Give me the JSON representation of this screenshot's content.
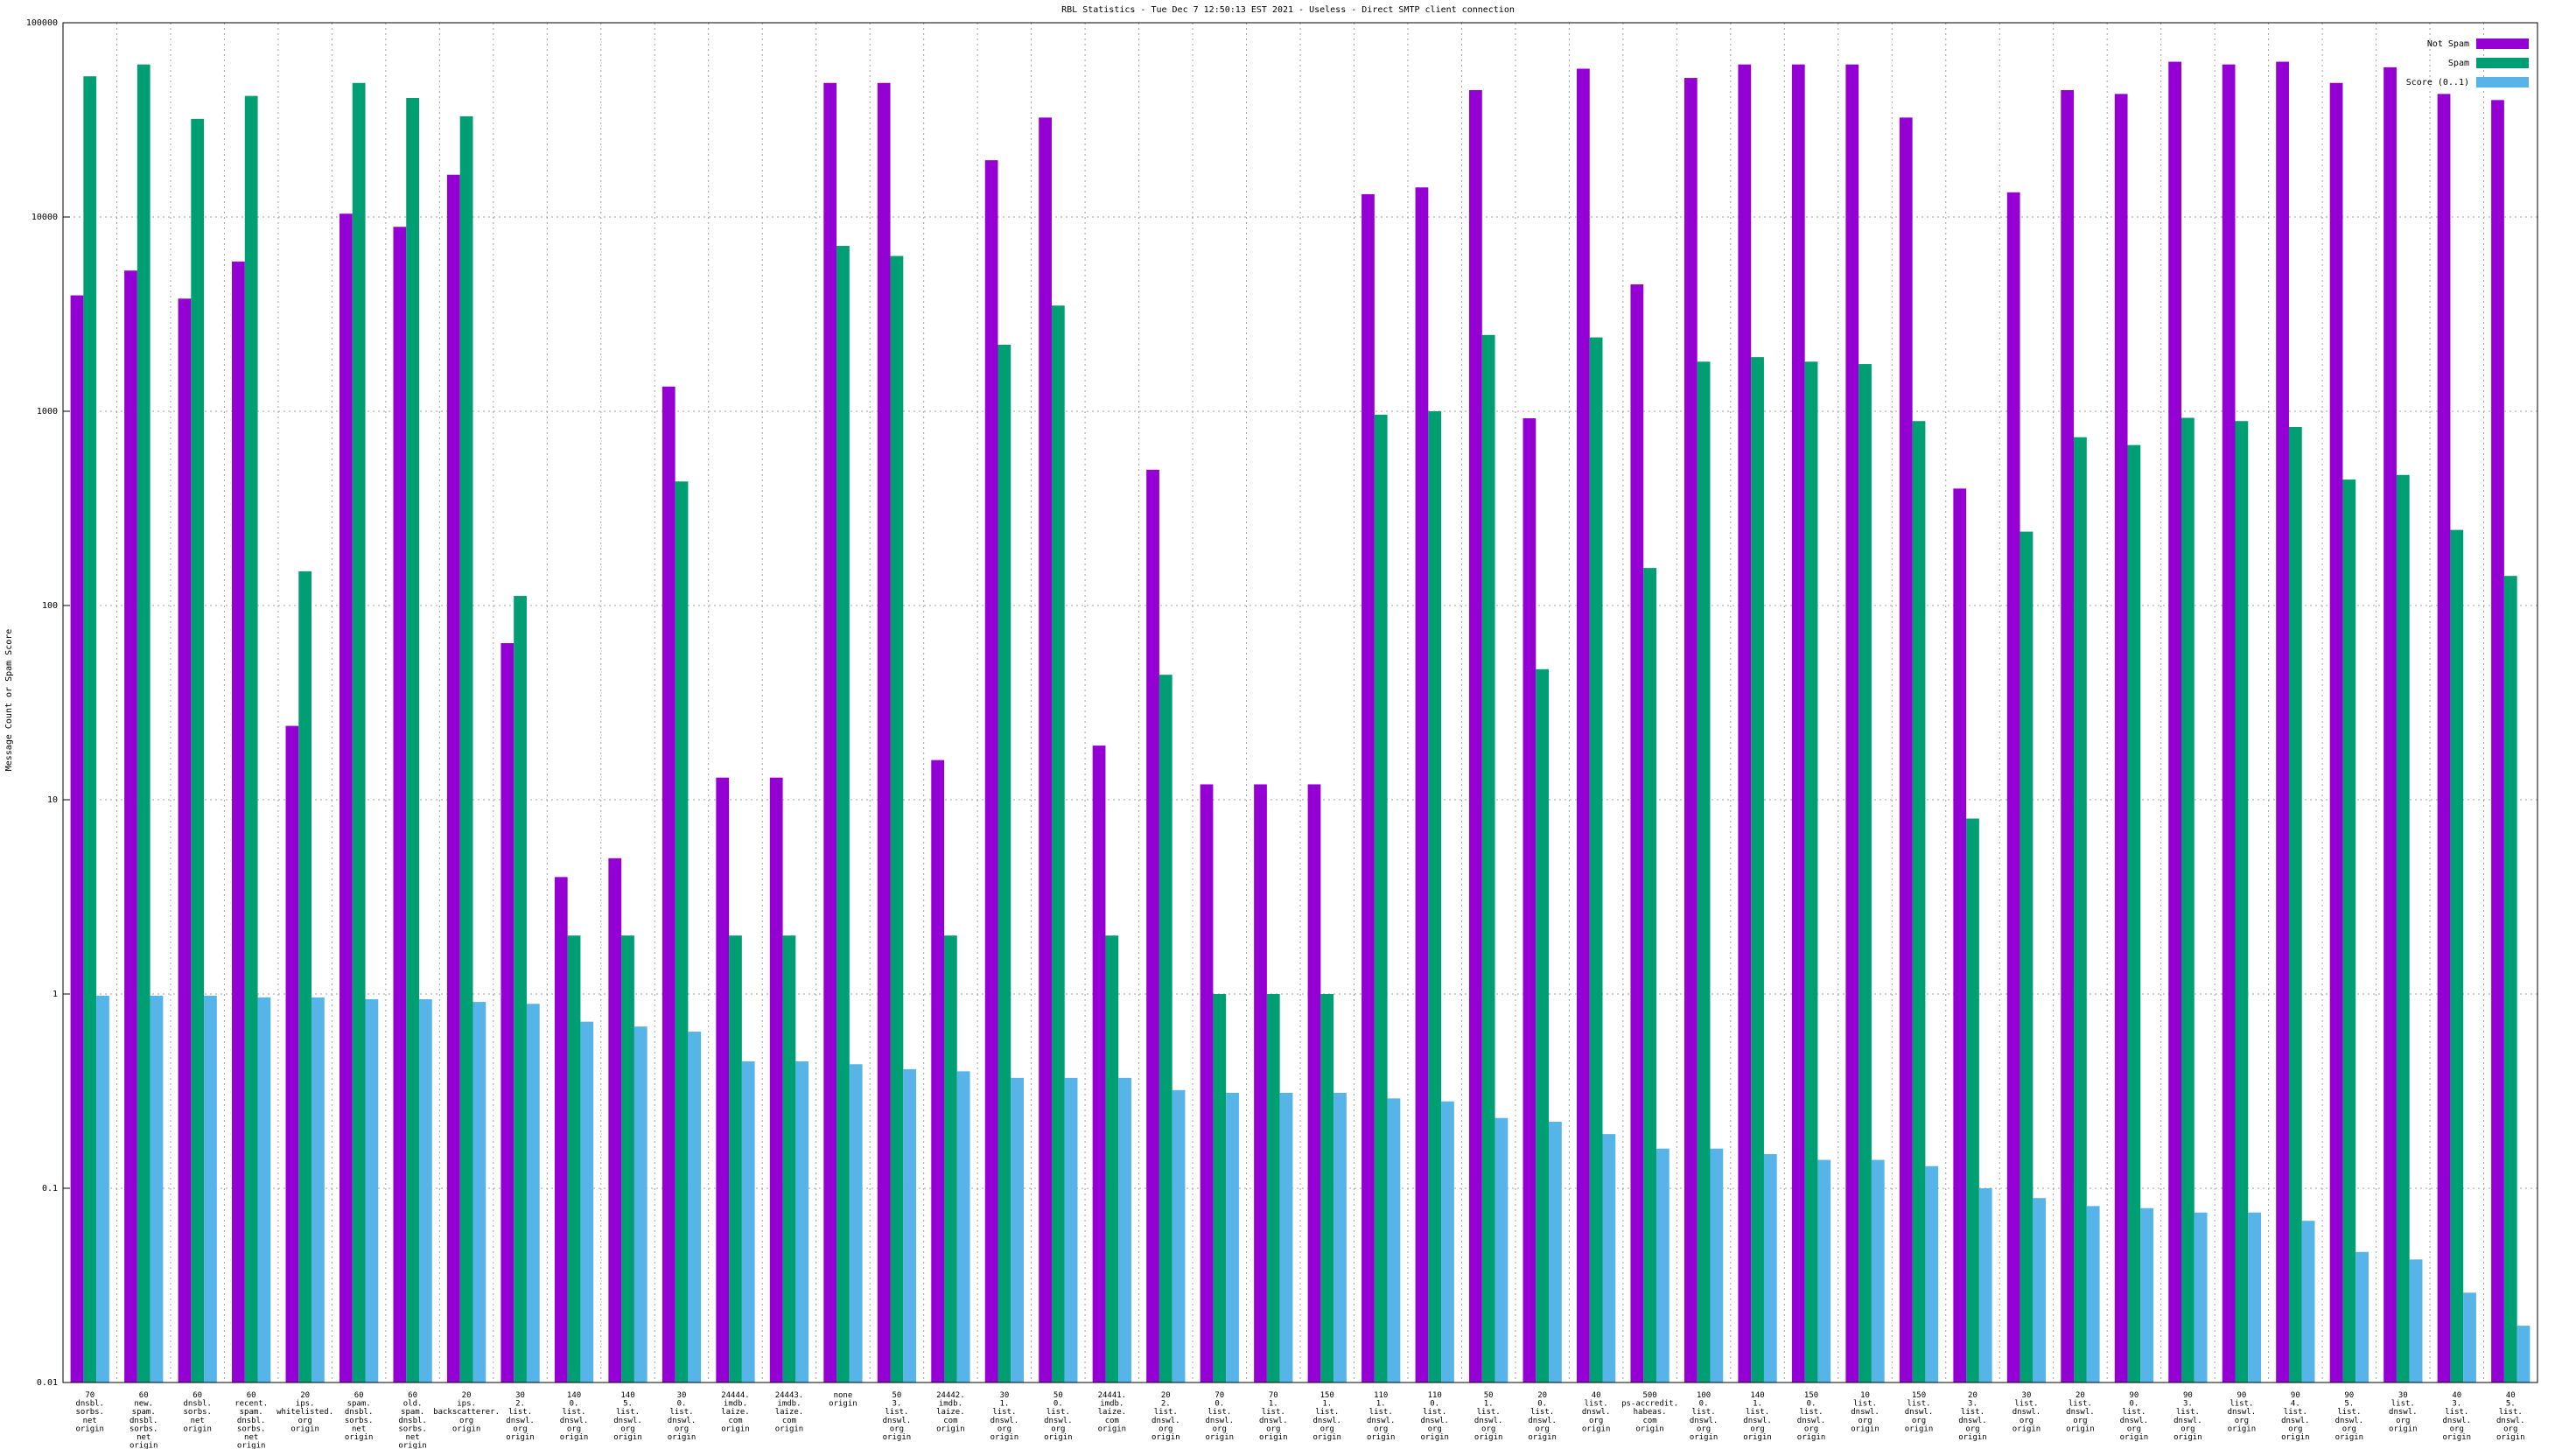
{
  "chart_data": {
    "type": "bar",
    "title": "RBL Statistics - Tue Dec  7 12:50:13 EST 2021 - Useless - Direct SMTP client connection",
    "y_label": "Message Count or Spam Score",
    "categories": [
      "70\ndnsbl.\nsorbs.\nnet\norigin",
      "60\nnew.\nspam.\ndnsbl.\nsorbs.\nnet\norigin",
      "60\ndnsbl.\nsorbs.\nnet\norigin",
      "60\nrecent.\nspam.\ndnsbl.\nsorbs.\nnet\norigin",
      "20\nips.\nwhitelisted.\norg\norigin",
      "60\nspam.\ndnsbl.\nsorbs.\nnet\norigin",
      "60\nold.\nspam.\ndnsbl.\nsorbs.\nnet\norigin",
      "20\nips.\nbackscatterer.\norg\norigin",
      "30\n2.\nlist.\ndnswl.\norg\norigin",
      "140\n0.\nlist.\ndnswl.\norg\norigin",
      "140\n5.\nlist.\ndnswl.\norg\norigin",
      "30\n0.\nlist.\ndnswl.\norg\norigin",
      "24444.\nimdb.\nlaize.\ncom\norigin",
      "24443.\nimdb.\nlaize.\ncom\norigin",
      "none\norigin",
      "50\n3.\nlist.\ndnswl.\norg\norigin",
      "24442.\nimdb.\nlaize.\ncom\norigin",
      "30\n1.\nlist.\ndnswl.\norg\norigin",
      "50\n0.\nlist.\ndnswl.\norg\norigin",
      "24441.\nimdb.\nlaize.\ncom\norigin",
      "20\n2.\nlist.\ndnswl.\norg\norigin",
      "70\n0.\nlist.\ndnswl.\norg\norigin",
      "70\n1.\nlist.\ndnswl.\norg\norigin",
      "150\n1.\nlist.\ndnswl.\norg\norigin",
      "110\n1.\nlist.\ndnswl.\norg\norigin",
      "110\n0.\nlist.\ndnswl.\norg\norigin",
      "50\n1.\nlist.\ndnswl.\norg\norigin",
      "20\n0.\nlist.\ndnswl.\norg\norigin",
      "40\nlist.\ndnswl.\norg\norigin",
      "500\nps-accredit.\nhabeas.\ncom\norigin",
      "100\n0.\nlist.\ndnswl.\norg\norigin",
      "140\n1.\nlist.\ndnswl.\norg\norigin",
      "150\n0.\nlist.\ndnswl.\norg\norigin",
      "10\nlist.\ndnswl.\norg\norigin",
      "150\nlist.\ndnswl.\norg\norigin",
      "20\n3.\nlist.\ndnswl.\norg\norigin",
      "30\nlist.\ndnswl.\norg\norigin",
      "20\nlist.\ndnswl.\norg\norigin",
      "90\n0.\nlist.\ndnswl.\norg\norigin",
      "90\n3.\nlist.\ndnswl.\norg\norigin",
      "90\nlist.\ndnswl.\norg\norigin",
      "90\n4.\nlist.\ndnswl.\norg\norigin",
      "90\n5.\nlist.\ndnswl.\norg\norigin",
      "30\nlist.\ndnswl.\norg\norigin",
      "40\n3.\nlist.\ndnswl.\norg\norigin",
      "40\n5.\nlist.\ndnswl.\norg\norigin"
    ],
    "series": [
      {
        "name": "Not Spam",
        "color": "#9400d3",
        "values": [
          3950,
          5300,
          3800,
          5900,
          24,
          10400,
          8900,
          16500,
          64,
          4,
          5,
          1340,
          13,
          13,
          49000,
          49000,
          16,
          19600,
          32500,
          19,
          500,
          12,
          12,
          12,
          13100,
          14200,
          45000,
          920,
          58000,
          4500,
          52000,
          61000,
          61000,
          61000,
          32500,
          400,
          13400,
          45000,
          43000,
          63000,
          61000,
          63000,
          49000,
          59000,
          43000,
          40000
        ]
      },
      {
        "name": "Spam",
        "color": "#009e73",
        "values": [
          53000,
          61000,
          32000,
          42000,
          150,
          49000,
          41000,
          33000,
          112,
          2,
          2,
          435,
          2,
          2,
          7100,
          6300,
          2,
          2200,
          3500,
          2,
          44,
          1,
          1,
          1,
          960,
          1000,
          2470,
          47,
          2400,
          156,
          1800,
          1900,
          1800,
          1750,
          890,
          8,
          240,
          735,
          670,
          925,
          890,
          830,
          445,
          470,
          245,
          142
        ]
      },
      {
        "name": "Score (0..1)",
        "color": "#56b4e9",
        "values": [
          0.98,
          0.98,
          0.98,
          0.96,
          0.96,
          0.94,
          0.94,
          0.91,
          0.89,
          0.72,
          0.68,
          0.64,
          0.45,
          0.45,
          0.435,
          0.41,
          0.4,
          0.37,
          0.37,
          0.37,
          0.32,
          0.31,
          0.31,
          0.31,
          0.29,
          0.28,
          0.23,
          0.22,
          0.19,
          0.16,
          0.16,
          0.15,
          0.14,
          0.14,
          0.13,
          0.1,
          0.089,
          0.081,
          0.079,
          0.075,
          0.075,
          0.068,
          0.047,
          0.043,
          0.029,
          0.0196
        ]
      }
    ],
    "ylog": true,
    "ylim": [
      0.01,
      100000
    ],
    "yticks": [
      0.01,
      0.1,
      1,
      10,
      100,
      1000,
      10000,
      100000
    ],
    "grid": true,
    "legend": "top-right"
  }
}
